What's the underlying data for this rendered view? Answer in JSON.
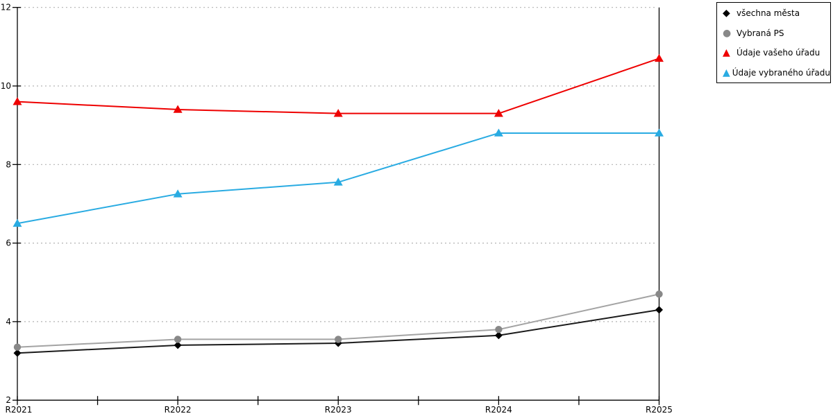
{
  "chart_data": {
    "type": "line",
    "title": "",
    "xlabel": "",
    "ylabel": "",
    "categories": [
      "R2021",
      "R2022",
      "R2023",
      "R2024",
      "R2025"
    ],
    "series": [
      {
        "name": "všechna města",
        "color": "#000000",
        "line_color": "#1a1a1a",
        "marker": "diamond",
        "values": [
          3.2,
          3.4,
          3.45,
          3.65,
          4.3
        ]
      },
      {
        "name": "Vybraná PS",
        "color": "#888888",
        "line_color": "#a3a3a3",
        "marker": "circle",
        "values": [
          3.35,
          3.55,
          3.55,
          3.8,
          4.7
        ]
      },
      {
        "name": "Údaje vašeho úřadu",
        "color": "#ee0000",
        "line_color": "#ee0000",
        "marker": "triangle-up",
        "values": [
          9.6,
          9.4,
          9.3,
          9.3,
          10.7
        ]
      },
      {
        "name": "Údaje vybraného úřadu",
        "color": "#29abe2",
        "line_color": "#29abe2",
        "marker": "triangle-up",
        "values": [
          6.5,
          7.25,
          7.55,
          8.8,
          8.8
        ]
      }
    ],
    "ylim": [
      2,
      12
    ],
    "y_tick_step": 2,
    "y_ticks": [
      2,
      4,
      6,
      8,
      10,
      12
    ],
    "x_minor_ticks_at_midpoints": true,
    "grid": "horizontal dotted lines at 4, 6, 8, 10, 12",
    "legend_position": "outside top-right, boxed"
  },
  "colors": {
    "background": "#ffffff",
    "axis": "#000000",
    "grid": "#b3b3b3",
    "legend_border": "#000000"
  }
}
